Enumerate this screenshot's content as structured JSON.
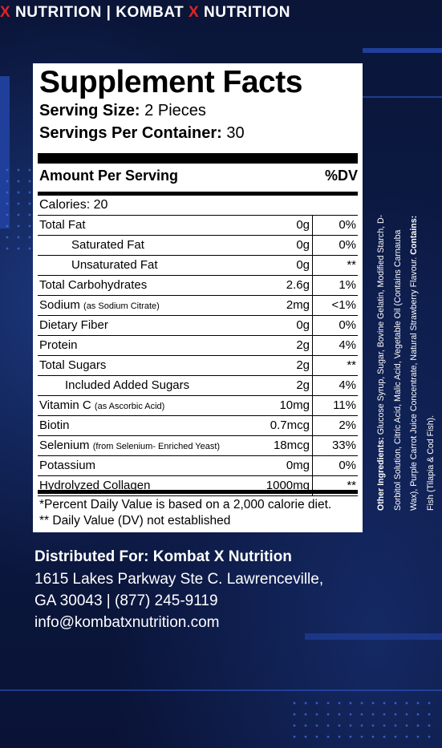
{
  "brand_bar": {
    "segments": [
      {
        "text": "X",
        "accent": true
      },
      {
        "text": " NUTRITION | KOMBAT ",
        "accent": false
      },
      {
        "text": "X",
        "accent": true
      },
      {
        "text": " NUTRITION",
        "accent": false
      }
    ]
  },
  "colors": {
    "accent": "#e02424",
    "background": "#0b1230",
    "panel": "#ffffff"
  },
  "facts": {
    "title": "Supplement Facts",
    "serving_size_label": "Serving Size:",
    "serving_size_value": "2 Pieces",
    "servings_per_container_label": "Servings Per Container:",
    "servings_per_container_value": "30",
    "amount_per_serving": "Amount Per Serving",
    "dv_header": "%DV",
    "calories": "Calories: 20",
    "rows": [
      {
        "label": "Total Fat",
        "note": "",
        "amount": "0g",
        "dv": "0%",
        "indent": 0
      },
      {
        "label": "Saturated Fat",
        "note": "",
        "amount": "0g",
        "dv": "0%",
        "indent": 1
      },
      {
        "label": "Unsaturated Fat",
        "note": "",
        "amount": "0g",
        "dv": "**",
        "indent": 1
      },
      {
        "label": "Total Carbohydrates",
        "note": "",
        "amount": "2.6g",
        "dv": "1%",
        "indent": 0
      },
      {
        "label": "Sodium",
        "note": "(as Sodium Citrate)",
        "amount": "2mg",
        "dv": "<1%",
        "indent": 0
      },
      {
        "label": "Dietary Fiber",
        "note": "",
        "amount": "0g",
        "dv": "0%",
        "indent": 0
      },
      {
        "label": "Protein",
        "note": "",
        "amount": "2g",
        "dv": "4%",
        "indent": 0
      },
      {
        "label": "Total Sugars",
        "note": "",
        "amount": "2g",
        "dv": "**",
        "indent": 0
      },
      {
        "label": "Included Added Sugars",
        "note": "",
        "amount": "2g",
        "dv": "4%",
        "indent": 2
      },
      {
        "label": "Vitamin C",
        "note": "(as Ascorbic Acid)",
        "amount": "10mg",
        "dv": "11%",
        "indent": 0
      },
      {
        "label": "Biotin",
        "note": "",
        "amount": "0.7mcg",
        "dv": "2%",
        "indent": 0
      },
      {
        "label": "Selenium",
        "note": "(from Selenium- Enriched Yeast)",
        "amount": "18mcg",
        "dv": "33%",
        "indent": 0
      },
      {
        "label": "Potassium",
        "note": "",
        "amount": "0mg",
        "dv": "0%",
        "indent": 0
      },
      {
        "label": "Hydrolyzed Collagen",
        "note": "",
        "amount": "1000mg",
        "dv": "**",
        "indent": 0
      }
    ],
    "footnote_1": "*Percent Daily Value is based on a 2,000 calorie diet.",
    "footnote_2": "** Daily Value (DV) not established"
  },
  "distributor": {
    "heading": "Distributed For: Kombat X Nutrition",
    "address_1": "1615 Lakes Parkway Ste C. Lawrenceville,",
    "address_2": "GA 30043 | (877) 245-9119",
    "email": "info@kombatxnutrition.com"
  },
  "ingredients": {
    "other_label": "Other Ingredients:",
    "other_text": " Glucose Syrup, Sugar, Bovine Gelatin, Modified Starch, D-Sorbitol Solution, Citric Acid, Malic Acid, Vegetable Oil (Contains Carnauba Wax), Purple Carrot Juice Concentrate, Natural Strawberry Flavour.",
    "contains_label": "Contains:",
    "contains_text": " Fish (Tilapia & Cod Fish)."
  }
}
